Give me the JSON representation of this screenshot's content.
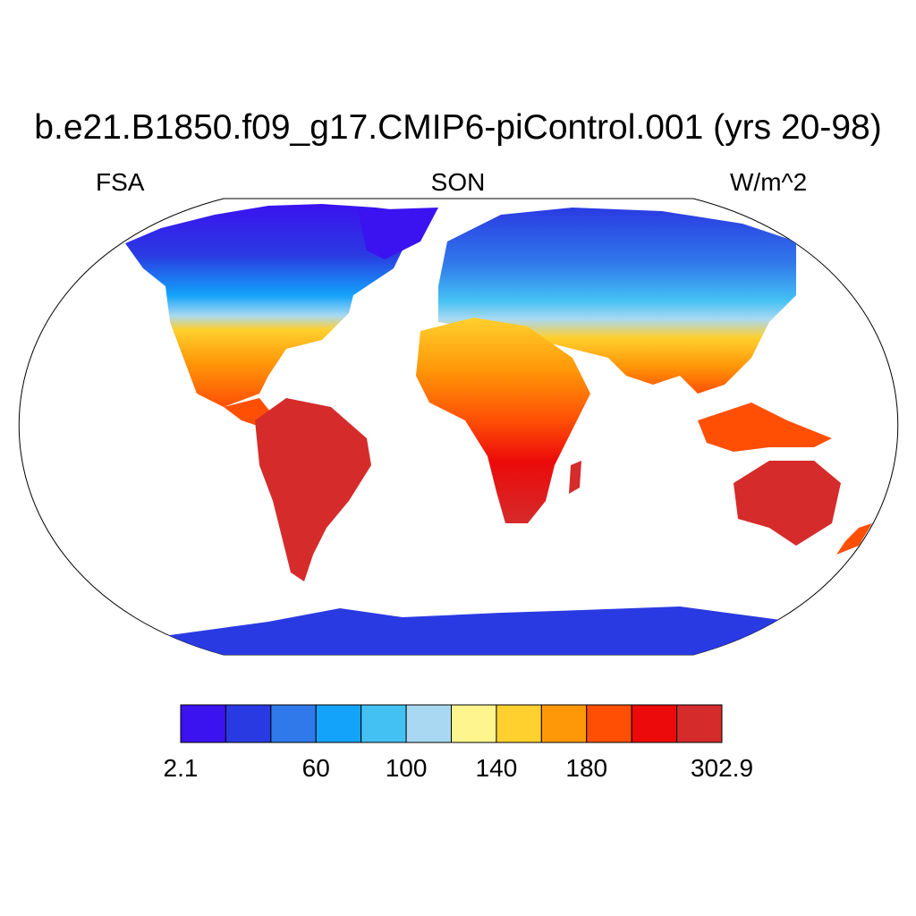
{
  "title": "b.e21.B1850.f09_g17.CMIP6-piControl.001 (yrs 20-98)",
  "variable": "FSA",
  "season": "SON",
  "units": "W/m^2",
  "colorbar": {
    "colors": [
      "#3b12f0",
      "#2a3ae2",
      "#3079ea",
      "#13a3fa",
      "#44c1f3",
      "#a9d9f2",
      "#fff58e",
      "#ffd02e",
      "#ff9808",
      "#ff4f05",
      "#ec0a0a",
      "#d52b2b"
    ],
    "tick_labels": [
      {
        "label": "2.1",
        "index": 0
      },
      {
        "label": "60",
        "index": 3
      },
      {
        "label": "100",
        "index": 5
      },
      {
        "label": "140",
        "index": 7
      },
      {
        "label": "180",
        "index": 9
      },
      {
        "label": "302.9",
        "index": 12
      }
    ]
  }
}
